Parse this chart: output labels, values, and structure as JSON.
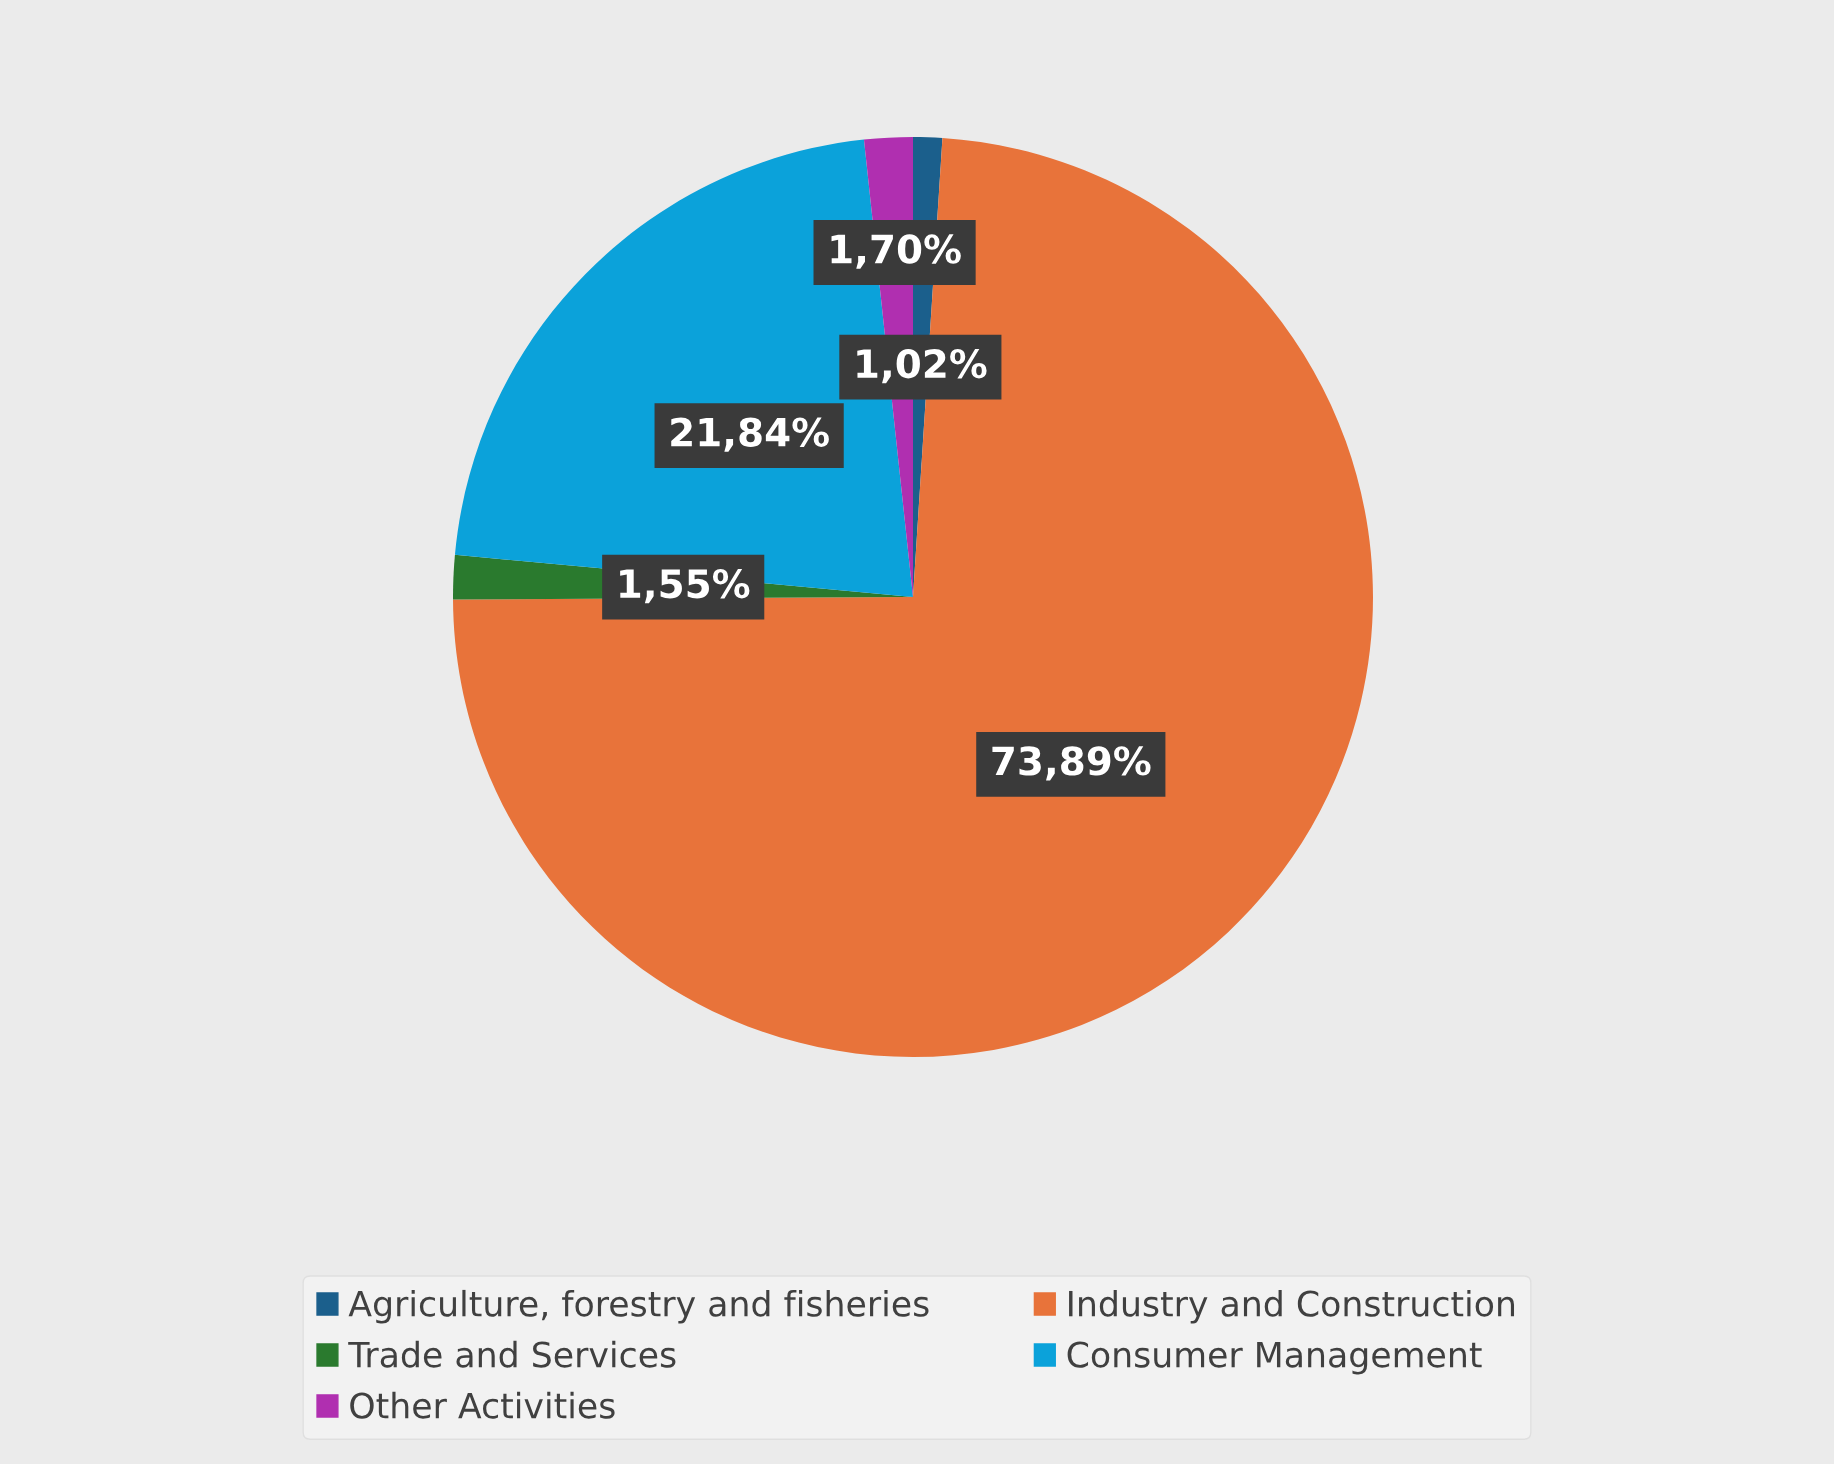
{
  "chart_data": {
    "type": "pie",
    "categories": [
      "Agriculture, forestry and fisheries",
      "Industry and Construction",
      "Trade and Services",
      "Consumer Management",
      "Other Activities"
    ],
    "values": [
      1.02,
      73.89,
      1.55,
      21.84,
      1.7
    ],
    "colors": [
      "#1b5f8c",
      "#e8733a",
      "#2a7a2e",
      "#0ba2da",
      "#b02fb0"
    ],
    "value_labels": [
      "1,02%",
      "73,89%",
      "1,55%",
      "21,84%",
      "1,70%"
    ],
    "legend": "bottom"
  }
}
